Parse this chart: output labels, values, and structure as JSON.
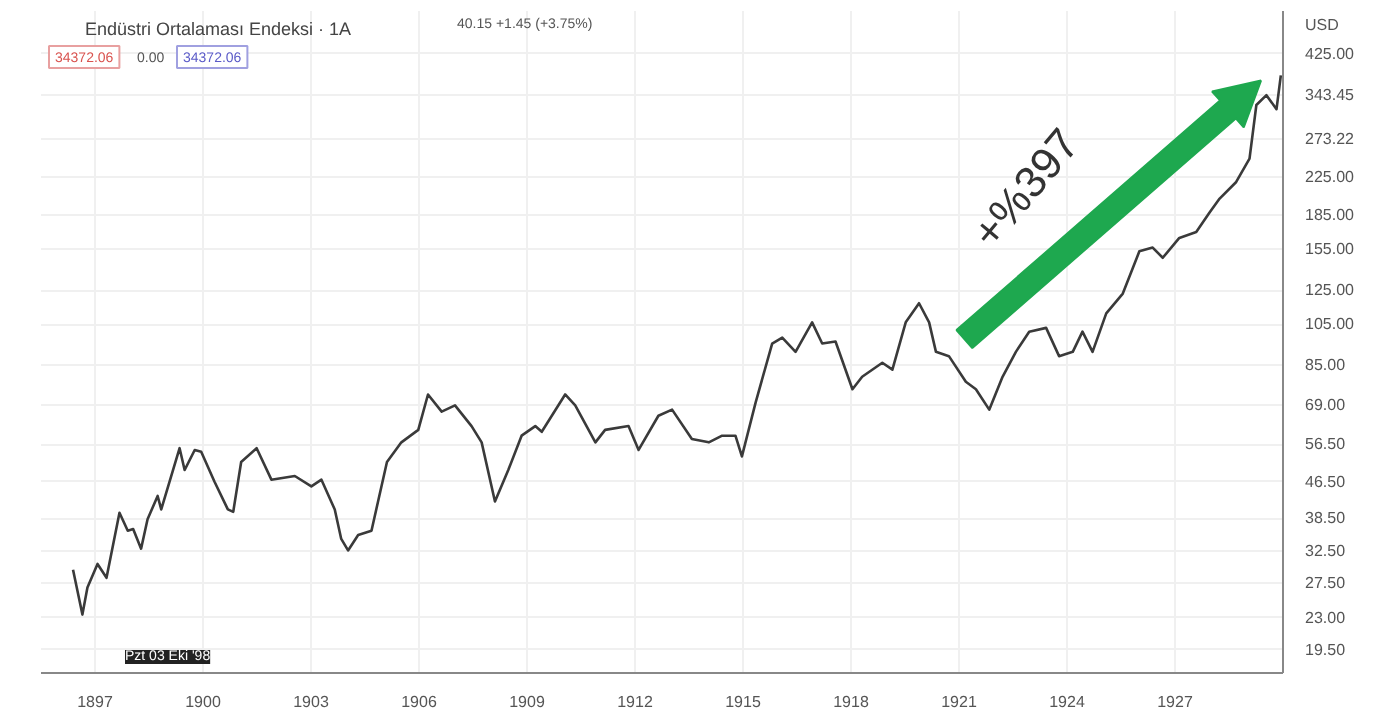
{
  "chart_data": {
    "type": "line",
    "title": "Endüstri Ortalaması Endeksi · 1A",
    "x": [
      1896.39,
      1896.65,
      1896.79,
      1897.07,
      1897.32,
      1897.68,
      1897.91,
      1898.06,
      1898.28,
      1898.46,
      1898.74,
      1898.84,
      1899.35,
      1899.49,
      1899.77,
      1899.95,
      1900.32,
      1900.69,
      1900.84,
      1901.06,
      1901.49,
      1901.9,
      1902.55,
      1903.01,
      1903.29,
      1903.66,
      1903.84,
      1904.03,
      1904.31,
      1904.68,
      1905.11,
      1905.51,
      1905.98,
      1906.25,
      1906.63,
      1907.0,
      1907.46,
      1907.74,
      1908.11,
      1908.48,
      1908.85,
      1909.23,
      1909.41,
      1910.06,
      1910.34,
      1910.9,
      1911.17,
      1911.82,
      1912.1,
      1912.65,
      1913.03,
      1913.58,
      1914.05,
      1914.42,
      1914.79,
      1914.97,
      1915.35,
      1915.81,
      1916.09,
      1916.46,
      1916.92,
      1917.2,
      1917.57,
      1918.04,
      1918.31,
      1918.87,
      1919.15,
      1919.52,
      1919.89,
      1920.17,
      1920.36,
      1920.72,
      1921.19,
      1921.47,
      1921.84,
      1922.21,
      1922.58,
      1922.95,
      1923.42,
      1923.78,
      1924.16,
      1924.43,
      1924.71,
      1925.09,
      1925.55,
      1926.01,
      1926.38,
      1926.66,
      1927.12,
      1927.59,
      1927.96,
      1928.24,
      1928.7,
      1929.07,
      1929.26,
      1929.54,
      1929.82,
      1929.94
    ],
    "series": [
      {
        "color": "#3a3a3a",
        "values": [
          29.5,
          23.4,
          26.9,
          30.4,
          28.3,
          39.6,
          36.1,
          36.4,
          32.9,
          38.3,
          43.2,
          40.3,
          55.3,
          49.4,
          54.8,
          54.3,
          46.5,
          40.3,
          39.8,
          51.5,
          55.3,
          47.0,
          47.9,
          45.4,
          47.0,
          40.3,
          34.6,
          32.6,
          35.3,
          36.1,
          51.5,
          57,
          60.8,
          73,
          66.8,
          69,
          62,
          57,
          42,
          49.4,
          59,
          62,
          60.2,
          73,
          69,
          57,
          60.8,
          62,
          54.8,
          65.4,
          67.5,
          58,
          57,
          59,
          59,
          53,
          70,
          95,
          98,
          91,
          106,
          95,
          96,
          75,
          80,
          86,
          83,
          106,
          117,
          106,
          91,
          89,
          78,
          75,
          67.5,
          80,
          91,
          101,
          103,
          89,
          91,
          101,
          91,
          111,
          123,
          153,
          156,
          148,
          164,
          169,
          187,
          201,
          219,
          247,
          326,
          343,
          319,
          380
        ]
      }
    ],
    "xlim": [
      1895.5,
      1930.0
    ],
    "ylim": [
      17.3,
      530
    ],
    "xticks": [
      1897,
      1900,
      1903,
      1906,
      1909,
      1912,
      1915,
      1918,
      1921,
      1924,
      1927
    ],
    "yticks": [
      {
        "value": 19.5,
        "label": "19.50"
      },
      {
        "value": 23,
        "label": "23.00"
      },
      {
        "value": 27.5,
        "label": "27.50"
      },
      {
        "value": 32.5,
        "label": "32.50"
      },
      {
        "value": 38.5,
        "label": "38.50"
      },
      {
        "value": 46.5,
        "label": "46.50"
      },
      {
        "value": 56.5,
        "label": "56.50"
      },
      {
        "value": 69,
        "label": "69.00"
      },
      {
        "value": 85,
        "label": "85.00"
      },
      {
        "value": 105,
        "label": "105.00"
      },
      {
        "value": 125,
        "label": "125.00"
      },
      {
        "value": 155,
        "label": "155.00"
      },
      {
        "value": 185,
        "label": "185.00"
      },
      {
        "value": 225,
        "label": "225.00"
      },
      {
        "value": 273.22,
        "label": "273.22"
      },
      {
        "value": 343.45,
        "label": "343.45"
      },
      {
        "value": 425,
        "label": "425.00"
      }
    ],
    "log": "y",
    "grid": true,
    "annotations": [
      "+%397",
      "40.15 +1.45 (+3.75%)",
      "34372.06",
      "0.00",
      "34372.06",
      "USD",
      "Pzt 03 Eki '98"
    ]
  }
}
